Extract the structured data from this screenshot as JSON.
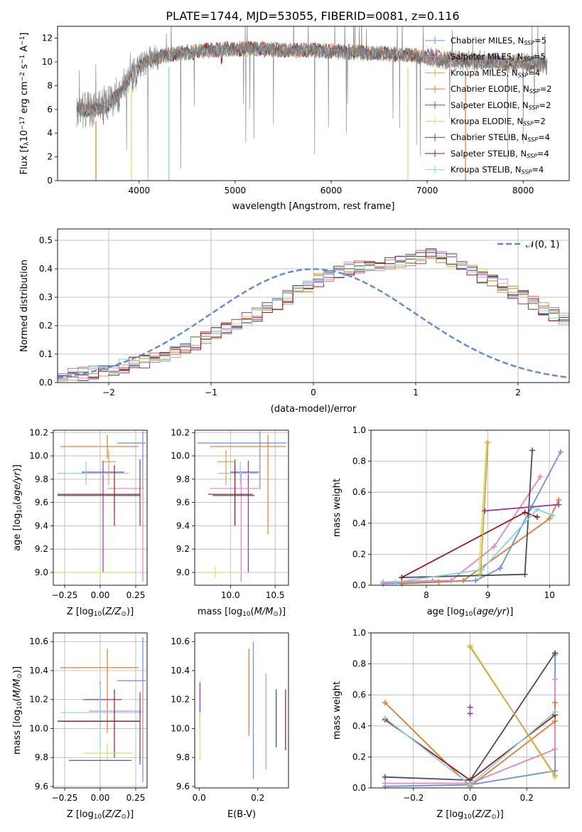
{
  "figure_title": "PLATE=1744, MJD=53055, FIBERID=0081, z=0.116",
  "colors": {
    "chabrier_miles": "#6a8fdb",
    "salpeter_miles": "#e385c3",
    "kroupa_miles": "#d9a441",
    "chabrier_elodie": "#e07b2a",
    "salpeter_elodie": "#9b30a8",
    "kroupa_elodie": "#cde36a",
    "chabrier_stelib": "#4d4d4d",
    "salpeter_stelib": "#9b1c1c",
    "kroupa_stelib": "#7fd6df",
    "data_grey": "#808080",
    "normal_curve": "#5b8bd6"
  },
  "chart_data": [
    {
      "id": "spectrum",
      "type": "line",
      "title": "PLATE=1744, MJD=53055, FIBERID=0081, z=0.116",
      "xlabel": "wavelength [Angstrom, rest frame]",
      "ylabel": "Flux [fλ10⁻¹⁷ erg cm⁻² s⁻¹ A⁻¹]",
      "xlim": [
        3150,
        8480
      ],
      "ylim": [
        0,
        13
      ],
      "xticks": [
        4000,
        5000,
        6000,
        7000,
        8000
      ],
      "yticks": [
        0,
        2,
        4,
        6,
        8,
        10,
        12
      ],
      "grid": false,
      "legend_position": "right",
      "continuum": {
        "x": [
          3350,
          3500,
          3650,
          3800,
          3950,
          4100,
          4300,
          4500,
          4750,
          5000,
          5250,
          5500,
          5750,
          6000,
          6250,
          6500,
          6750,
          7000,
          7250,
          7500,
          7750,
          8000,
          8250
        ],
        "y": [
          6.0,
          5.9,
          6.2,
          7.4,
          9.3,
          10.2,
          10.6,
          10.8,
          11.0,
          11.1,
          11.1,
          11.0,
          11.0,
          10.9,
          10.8,
          10.7,
          10.6,
          10.4,
          10.2,
          10.1,
          10.0,
          9.9,
          9.8
        ]
      },
      "series": [
        {
          "name": "Chabrier MILES, N_SSP=5",
          "color": "#6a8fdb"
        },
        {
          "name": "Salpeter MILES, N_SSP=5",
          "color": "#e385c3"
        },
        {
          "name": "Kroupa MILES, N_SSP=4",
          "color": "#d9a441"
        },
        {
          "name": "Chabrier ELODIE, N_SSP=2",
          "color": "#e07b2a"
        },
        {
          "name": "Salpeter ELODIE, N_SSP=2",
          "color": "#9b30a8"
        },
        {
          "name": "Kroupa ELODIE, N_SSP=2",
          "color": "#cde36a"
        },
        {
          "name": "Chabrier STELIB, N_SSP=4",
          "color": "#4d4d4d"
        },
        {
          "name": "Salpeter STELIB, N_SSP=4",
          "color": "#9b1c1c"
        },
        {
          "name": "Kroupa STELIB, N_SSP=4",
          "color": "#7fd6df"
        }
      ],
      "legend_labels": [
        {
          "main": "Chabrier MILES, N",
          "sub": "SSP",
          "tail": "=5",
          "color": "#6a8fdb"
        },
        {
          "main": "Salpeter MILES, N",
          "sub": "SSP",
          "tail": "=5",
          "color": "#e385c3"
        },
        {
          "main": "Kroupa MILES, N",
          "sub": "SSP",
          "tail": "=4",
          "color": "#d9a441"
        },
        {
          "main": "Chabrier ELODIE, N",
          "sub": "SSP",
          "tail": "=2",
          "color": "#e07b2a"
        },
        {
          "main": "Salpeter ELODIE, N",
          "sub": "SSP",
          "tail": "=2",
          "color": "#9b30a8"
        },
        {
          "main": "Kroupa ELODIE, N",
          "sub": "SSP",
          "tail": "=2",
          "color": "#cde36a"
        },
        {
          "main": "Chabrier STELIB, N",
          "sub": "SSP",
          "tail": "=4",
          "color": "#4d4d4d"
        },
        {
          "main": "Salpeter STELIB, N",
          "sub": "SSP",
          "tail": "=4",
          "color": "#9b1c1c"
        },
        {
          "main": "Kroupa STELIB, N",
          "sub": "SSP",
          "tail": "=4",
          "color": "#7fd6df"
        }
      ]
    },
    {
      "id": "residuals",
      "type": "bar",
      "xlabel": "(data-model)/error",
      "ylabel": "Normed distribution",
      "xlim": [
        -2.5,
        2.5
      ],
      "ylim": [
        0,
        0.54
      ],
      "xticks": [
        -2,
        -1,
        0,
        1,
        2
      ],
      "yticks": [
        0.0,
        0.1,
        0.2,
        0.3,
        0.4,
        0.5
      ],
      "grid": true,
      "legend": "𝒩(0, 1)",
      "legend_position": "top-right",
      "bin_width": 0.1,
      "bin_start": -2.5,
      "envelope": [
        0.02,
        0.025,
        0.03,
        0.035,
        0.042,
        0.05,
        0.058,
        0.065,
        0.075,
        0.085,
        0.1,
        0.11,
        0.125,
        0.14,
        0.155,
        0.17,
        0.19,
        0.21,
        0.225,
        0.24,
        0.26,
        0.28,
        0.3,
        0.32,
        0.34,
        0.36,
        0.375,
        0.39,
        0.4,
        0.405,
        0.41,
        0.41,
        0.415,
        0.425,
        0.43,
        0.44,
        0.45,
        0.44,
        0.43,
        0.41,
        0.395,
        0.375,
        0.36,
        0.34,
        0.32,
        0.3,
        0.28,
        0.26,
        0.24,
        0.22,
        0.2,
        0.18,
        0.16,
        0.14,
        0.125,
        0.11,
        0.095,
        0.082,
        0.07,
        0.06,
        0.05,
        0.042,
        0.035,
        0.03,
        0.026,
        0.022,
        0.02,
        0.018,
        0.016,
        0.015,
        0.014,
        0.013,
        0.012
      ],
      "normal": {
        "mu": 0,
        "sigma": 1
      }
    },
    {
      "id": "age_vs_Z",
      "type": "scatter",
      "xlabel": "Z [log10(Z/Z⊙)]",
      "ylabel": "age  [log10(age/yr)]",
      "xlim": [
        -0.33,
        0.33
      ],
      "ylim": [
        8.89,
        10.22
      ],
      "xticks": [
        -0.25,
        0.0,
        0.25
      ],
      "xtick_labels": [
        "−0.25",
        "0.00",
        "0.25"
      ],
      "yticks": [
        9.0,
        9.2,
        9.4,
        9.6,
        9.8,
        10.0,
        10.2
      ],
      "grid": true,
      "points": [
        {
          "color": "#6a8fdb",
          "x": 0.3,
          "xerr": [
            0.18,
            0.02
          ],
          "y": 10.11,
          "yerr": [
            0.4,
            0.1
          ]
        },
        {
          "color": "#e07b2a",
          "x": 0.05,
          "xerr": [
            0.33,
            0.22
          ],
          "y": 10.08,
          "yerr": [
            0.1,
            0.1
          ]
        },
        {
          "color": "#9b30a8",
          "x": 0.02,
          "xerr": [
            0.15,
            0.15
          ],
          "y": 9.86,
          "yerr": [
            0.86,
            0.1
          ]
        },
        {
          "color": "#e385c3",
          "x": 0.3,
          "xerr": [
            0.25,
            0.0
          ],
          "y": 9.72,
          "yerr": [
            0.8,
            0.15
          ]
        },
        {
          "color": "#7fd6df",
          "x": -0.1,
          "xerr": [
            0.2,
            0.3
          ],
          "y": 9.85,
          "yerr": [
            0.1,
            0.1
          ]
        },
        {
          "color": "#4d4d4d",
          "x": 0.28,
          "xerr": [
            0.58,
            0.0
          ],
          "y": 9.67,
          "yerr": [
            0.27,
            0.3
          ]
        },
        {
          "color": "#9b1c1c",
          "x": 0.1,
          "xerr": [
            0.4,
            0.18
          ],
          "y": 9.66,
          "yerr": [
            0.26,
            0.26
          ]
        },
        {
          "color": "#cde36a",
          "x": 0.0,
          "xerr": [
            0.3,
            0.25
          ],
          "y": 9.0,
          "yerr": [
            0.05,
            0.05
          ]
        },
        {
          "color": "#d9a441",
          "x": 0.06,
          "xerr": [
            0.05,
            0.05
          ],
          "y": 9.95,
          "yerr": [
            0.2,
            0.1
          ]
        }
      ]
    },
    {
      "id": "age_vs_mass",
      "type": "scatter",
      "xlabel": "mass [log10(M/M⊙)]",
      "xlim": [
        9.6,
        10.65
      ],
      "ylim": [
        8.89,
        10.22
      ],
      "xticks": [
        10.0,
        10.5
      ],
      "yticks": [
        9.0,
        9.2,
        9.4,
        9.6,
        9.8,
        10.0,
        10.2
      ],
      "grid": true,
      "points": [
        {
          "color": "#6a8fdb",
          "x": 10.33,
          "xerr": [
            0.7,
            0.3
          ],
          "y": 10.11,
          "yerr": [
            0.4,
            0.1
          ]
        },
        {
          "color": "#e07b2a",
          "x": 10.42,
          "xerr": [
            0.65,
            0.2
          ],
          "y": 10.08,
          "yerr": [
            0.75,
            0.1
          ]
        },
        {
          "color": "#9b30a8",
          "x": 10.2,
          "xerr": [
            0.2,
            0.12
          ],
          "y": 9.86,
          "yerr": [
            0.86,
            0.1
          ]
        },
        {
          "color": "#e385c3",
          "x": 10.12,
          "xerr": [
            0.35,
            0.2
          ],
          "y": 9.72,
          "yerr": [
            0.8,
            0.15
          ]
        },
        {
          "color": "#7fd6df",
          "x": 10.11,
          "xerr": [
            0.25,
            0.2
          ],
          "y": 9.85,
          "yerr": [
            0.1,
            0.1
          ]
        },
        {
          "color": "#4d4d4d",
          "x": 10.05,
          "xerr": [
            0.3,
            0.2
          ],
          "y": 9.67,
          "yerr": [
            0.27,
            0.3
          ]
        },
        {
          "color": "#9b1c1c",
          "x": 10.05,
          "xerr": [
            0.25,
            0.22
          ],
          "y": 9.66,
          "yerr": [
            0.26,
            0.26
          ]
        },
        {
          "color": "#cde36a",
          "x": 9.83,
          "xerr": [
            0.15,
            0.3
          ],
          "y": 9.0,
          "yerr": [
            0.05,
            0.05
          ]
        },
        {
          "color": "#d9a441",
          "x": 9.95,
          "xerr": [
            0.1,
            0.1
          ],
          "y": 9.95,
          "yerr": [
            0.2,
            0.1
          ]
        }
      ]
    },
    {
      "id": "massweight_vs_age",
      "type": "line",
      "xlabel": "age  [log10(age/yr)]",
      "ylabel": "mass weight",
      "xlim": [
        7.1,
        10.32
      ],
      "ylim": [
        0,
        1
      ],
      "xticks": [
        8,
        9,
        10
      ],
      "yticks": [
        0.0,
        0.2,
        0.4,
        0.6,
        0.8,
        1.0
      ],
      "grid": true,
      "series": [
        {
          "color": "#6a8fdb",
          "x": [
            7.3,
            8.8,
            9.2,
            9.7,
            10.18
          ],
          "y": [
            0.01,
            0.03,
            0.11,
            0.5,
            0.86
          ]
        },
        {
          "color": "#e385c3",
          "x": [
            7.3,
            8.1,
            8.4,
            9.1,
            9.85
          ],
          "y": [
            0.02,
            0.03,
            0.03,
            0.25,
            0.7
          ]
        },
        {
          "color": "#e07b2a",
          "x": [
            7.6,
            8.2,
            8.6,
            10.0,
            10.15
          ],
          "y": [
            0.01,
            0.02,
            0.03,
            0.43,
            0.55
          ]
        },
        {
          "color": "#9b30a8",
          "x": [
            8.95,
            10.15
          ],
          "y": [
            0.48,
            0.52
          ]
        },
        {
          "color": "#cde36a",
          "x": [
            8.85,
            8.98
          ],
          "y": [
            0.07,
            0.92
          ]
        },
        {
          "color": "#4d4d4d",
          "x": [
            7.6,
            9.6,
            9.72
          ],
          "y": [
            0.05,
            0.07,
            0.87
          ]
        },
        {
          "color": "#9b1c1c",
          "x": [
            7.6,
            9.6,
            9.8
          ],
          "y": [
            0.05,
            0.47,
            0.44
          ]
        },
        {
          "color": "#7fd6df",
          "x": [
            7.5,
            8.9,
            9.8,
            10.05
          ],
          "y": [
            0.02,
            0.1,
            0.49,
            0.45
          ]
        },
        {
          "color": "#d9a441",
          "x": [
            8.88,
            9.0
          ],
          "y": [
            0.07,
            0.92
          ]
        }
      ]
    },
    {
      "id": "mass_vs_Z",
      "type": "scatter",
      "xlabel": "Z [log10(Z/Z⊙)]",
      "ylabel": "mass [log10(M/M⊙)]",
      "xlim": [
        -0.33,
        0.33
      ],
      "ylim": [
        9.59,
        10.66
      ],
      "xticks": [
        -0.25,
        0.0,
        0.25
      ],
      "xtick_labels": [
        "−0.25",
        "0.00",
        "0.25"
      ],
      "yticks": [
        9.6,
        9.8,
        10.0,
        10.2,
        10.4,
        10.6
      ],
      "grid": true,
      "points": [
        {
          "color": "#6a8fdb",
          "x": 0.3,
          "xerr": [
            0.18,
            0.02
          ],
          "y": 10.33,
          "yerr": [
            0.7,
            0.3
          ]
        },
        {
          "color": "#e07b2a",
          "x": 0.05,
          "xerr": [
            0.33,
            0.22
          ],
          "y": 10.42,
          "yerr": [
            0.45,
            0.13
          ]
        },
        {
          "color": "#9b30a8",
          "x": 0.0,
          "xerr": [
            0.12,
            0.15
          ],
          "y": 10.2,
          "yerr": [
            0.2,
            0.12
          ]
        },
        {
          "color": "#e385c3",
          "x": 0.3,
          "xerr": [
            0.38,
            0.0
          ],
          "y": 10.12,
          "yerr": [
            0.35,
            0.2
          ]
        },
        {
          "color": "#7fd6df",
          "x": 0.0,
          "xerr": [
            0.28,
            0.3
          ],
          "y": 10.11,
          "yerr": [
            0.25,
            0.2
          ]
        },
        {
          "color": "#4d4d4d",
          "x": 0.28,
          "xerr": [
            0.58,
            0.0
          ],
          "y": 10.05,
          "yerr": [
            0.3,
            0.2
          ]
        },
        {
          "color": "#9b1c1c",
          "x": 0.1,
          "xerr": [
            0.4,
            0.18
          ],
          "y": 10.05,
          "yerr": [
            0.25,
            0.22
          ]
        },
        {
          "color": "#cde36a",
          "x": 0.05,
          "xerr": [
            0.17,
            0.18
          ],
          "y": 9.83,
          "yerr": [
            0.05,
            0.07
          ]
        },
        {
          "color": "#4d4d4d",
          "x": 0.0,
          "xerr": [
            0.22,
            0.22
          ],
          "y": 9.78,
          "yerr": [
            0.0,
            0.0
          ]
        }
      ]
    },
    {
      "id": "mass_vs_ebv",
      "type": "scatter",
      "xlabel": "E(B-V)",
      "xlim": [
        -0.015,
        0.305
      ],
      "ylim": [
        9.59,
        10.66
      ],
      "xticks": [
        0.0,
        0.2
      ],
      "xtick_labels": [
        "0.0",
        "0.2"
      ],
      "yticks": [
        9.6,
        9.8,
        10.0,
        10.2,
        10.4,
        10.6
      ],
      "grid": false,
      "points": [
        {
          "color": "#9b30a8",
          "x": 0.003,
          "y": 10.2,
          "yerr": [
            0.2,
            0.12
          ]
        },
        {
          "color": "#cde36a",
          "x": 0.003,
          "y": 9.93,
          "yerr": [
            0.15,
            0.18
          ]
        },
        {
          "color": "#e07b2a",
          "x": 0.17,
          "y": 10.25,
          "yerr": [
            0.3,
            0.3
          ]
        },
        {
          "color": "#6a8fdb",
          "x": 0.185,
          "y": 10.1,
          "yerr": [
            0.45,
            0.5
          ]
        },
        {
          "color": "#e385c3",
          "x": 0.228,
          "y": 10.05,
          "yerr": [
            0.33,
            0.33
          ]
        },
        {
          "color": "#4d4d4d",
          "x": 0.263,
          "y": 10.07,
          "yerr": [
            0.2,
            0.2
          ]
        },
        {
          "color": "#9b1c1c",
          "x": 0.295,
          "y": 10.06,
          "yerr": [
            0.21,
            0.21
          ]
        }
      ]
    },
    {
      "id": "massweight_vs_Z",
      "type": "line",
      "xlabel": "Z [log10(Z/Z⊙)]",
      "ylabel": "mass weight",
      "xlim": [
        -0.35,
        0.35
      ],
      "ylim": [
        0,
        1
      ],
      "xticks": [
        -0.2,
        0.0,
        0.2
      ],
      "xtick_labels": [
        "−0.2",
        "0.0",
        "0.2"
      ],
      "yticks": [
        0.0,
        0.2,
        0.4,
        0.6,
        0.8,
        1.0
      ],
      "grid": true,
      "series": [
        {
          "color": "#6a8fdb",
          "x": [
            -0.3,
            0.0,
            0.3,
            0.3
          ],
          "y": [
            0.01,
            0.02,
            0.11,
            0.86
          ]
        },
        {
          "color": "#e385c3",
          "x": [
            -0.3,
            0.0,
            0.3,
            0.3
          ],
          "y": [
            0.03,
            0.03,
            0.25,
            0.7
          ]
        },
        {
          "color": "#e07b2a",
          "x": [
            -0.3,
            0.0,
            0.3,
            0.3
          ],
          "y": [
            0.55,
            0.01,
            0.43,
            0.55
          ]
        },
        {
          "color": "#9b1c1c",
          "x": [
            -0.3,
            0.0,
            0.3
          ],
          "y": [
            0.44,
            0.05,
            0.47
          ]
        },
        {
          "color": "#4d4d4d",
          "x": [
            -0.3,
            0.0,
            0.3
          ],
          "y": [
            0.07,
            0.05,
            0.87
          ]
        },
        {
          "color": "#7fd6df",
          "x": [
            -0.3,
            0.0,
            0.3
          ],
          "y": [
            0.45,
            0.02,
            0.49
          ]
        },
        {
          "color": "#cde36a",
          "x": [
            0.0,
            0.3
          ],
          "y": [
            0.92,
            0.07
          ]
        },
        {
          "color": "#d9a441",
          "x": [
            0.0,
            0.3
          ],
          "y": [
            0.91,
            0.08
          ]
        },
        {
          "color": "#9b30a8",
          "x": [
            0.0,
            0.0
          ],
          "y": [
            0.48,
            0.52
          ],
          "markers_only": true
        }
      ]
    }
  ]
}
